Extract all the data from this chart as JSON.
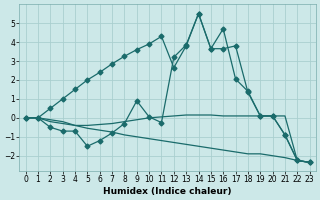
{
  "xlabel": "Humidex (Indice chaleur)",
  "background_color": "#cce8e8",
  "grid_color": "#aacfcf",
  "line_color": "#1a6b6b",
  "xlim": [
    -0.5,
    23.5
  ],
  "ylim": [
    -2.8,
    6.0
  ],
  "yticks": [
    -2,
    -1,
    0,
    1,
    2,
    3,
    4,
    5
  ],
  "xticks": [
    0,
    1,
    2,
    3,
    4,
    5,
    6,
    7,
    8,
    9,
    10,
    11,
    12,
    13,
    14,
    15,
    16,
    17,
    18,
    19,
    20,
    21,
    22,
    23
  ],
  "line_no_marker_1": {
    "x": [
      0,
      1,
      2,
      3,
      4,
      5,
      6,
      7,
      8,
      9,
      10,
      11,
      12,
      13,
      14,
      15,
      16,
      17,
      18,
      19,
      20,
      21,
      22,
      23
    ],
    "y": [
      0.0,
      0.0,
      -0.2,
      -0.3,
      -0.4,
      -0.4,
      -0.35,
      -0.3,
      -0.2,
      -0.1,
      0.0,
      0.05,
      0.1,
      0.15,
      0.15,
      0.15,
      0.1,
      0.1,
      0.1,
      0.1,
      0.1,
      0.1,
      -2.25,
      -2.35
    ]
  },
  "line_no_marker_2": {
    "x": [
      0,
      1,
      2,
      3,
      4,
      5,
      6,
      7,
      8,
      9,
      10,
      11,
      12,
      13,
      14,
      15,
      16,
      17,
      18,
      19,
      20,
      21,
      22,
      23
    ],
    "y": [
      0.0,
      0.0,
      -0.1,
      -0.2,
      -0.4,
      -0.55,
      -0.65,
      -0.75,
      -0.9,
      -1.0,
      -1.1,
      -1.2,
      -1.3,
      -1.4,
      -1.5,
      -1.6,
      -1.7,
      -1.8,
      -1.9,
      -1.9,
      -2.0,
      -2.1,
      -2.25,
      -2.35
    ]
  },
  "line_marker_1": {
    "x": [
      0,
      1,
      2,
      3,
      4,
      5,
      6,
      7,
      8,
      9,
      10,
      11,
      12,
      13,
      14,
      15,
      16,
      17,
      18,
      19,
      20,
      21,
      22,
      23
    ],
    "y": [
      0.0,
      0.0,
      0.5,
      1.0,
      1.5,
      2.0,
      2.4,
      2.85,
      3.25,
      3.6,
      3.9,
      4.3,
      2.65,
      3.8,
      5.5,
      3.65,
      4.7,
      2.05,
      1.4,
      0.1,
      0.1,
      -0.9,
      -2.25,
      -2.35
    ]
  },
  "line_marker_2": {
    "x": [
      0,
      1,
      2,
      3,
      4,
      5,
      6,
      7,
      8,
      9,
      10,
      11,
      12,
      13,
      14,
      15,
      16,
      17,
      18,
      19,
      20,
      21,
      22,
      23
    ],
    "y": [
      0.0,
      0.0,
      -0.5,
      -0.7,
      -0.7,
      -1.5,
      -1.2,
      -0.8,
      -0.3,
      0.9,
      0.05,
      -0.25,
      3.2,
      3.85,
      5.5,
      3.65,
      3.65,
      3.8,
      1.35,
      0.1,
      0.1,
      -0.9,
      -2.25,
      -2.35
    ]
  }
}
